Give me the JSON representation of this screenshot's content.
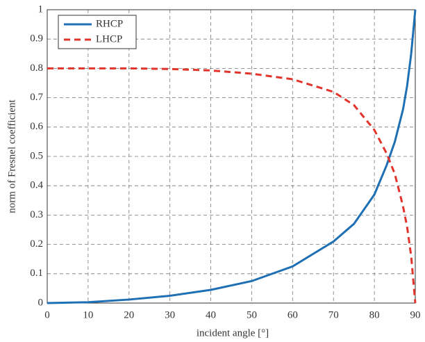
{
  "chart_data": {
    "type": "line",
    "x_label": "incident angle [°]",
    "y_label": "norm of Fresnel coefficient",
    "x": [
      0,
      10,
      20,
      30,
      40,
      50,
      60,
      70,
      75,
      80,
      83,
      85,
      87,
      88,
      89,
      90
    ],
    "series": [
      {
        "name": "RHCP",
        "color": "#1f6fb4",
        "dash": false,
        "values": [
          0,
          0.003,
          0.012,
          0.025,
          0.045,
          0.075,
          0.125,
          0.21,
          0.27,
          0.37,
          0.47,
          0.55,
          0.66,
          0.74,
          0.85,
          1.0
        ]
      },
      {
        "name": "LHCP",
        "color": "#e2342b",
        "dash": true,
        "values": [
          0.8,
          0.8,
          0.8,
          0.798,
          0.793,
          0.782,
          0.763,
          0.72,
          0.675,
          0.59,
          0.51,
          0.44,
          0.33,
          0.26,
          0.16,
          0
        ]
      }
    ],
    "xlim": [
      0,
      90
    ],
    "xticks": [
      0,
      10,
      20,
      30,
      40,
      50,
      60,
      70,
      80,
      90
    ],
    "ylim": [
      0,
      1
    ],
    "yticks": [
      0,
      0.1,
      0.2,
      0.3,
      0.4,
      0.5,
      0.6,
      0.7,
      0.8,
      0.9,
      1
    ],
    "grid": true,
    "legend": "upper left"
  }
}
